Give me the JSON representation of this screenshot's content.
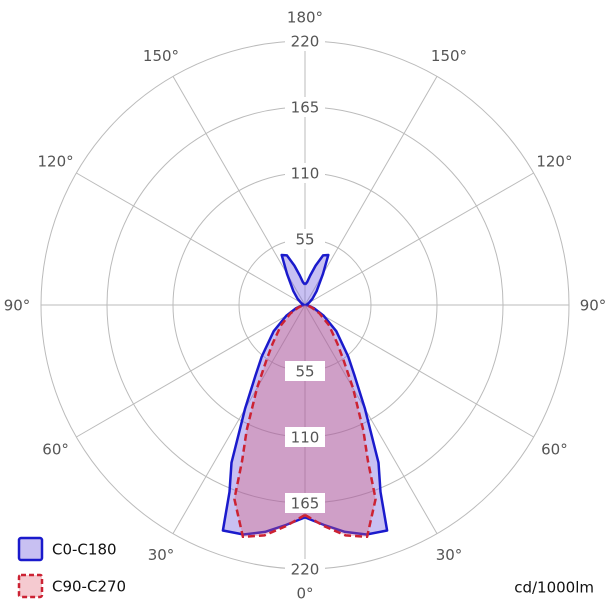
{
  "chart_data": {
    "type": "polar",
    "unit_label": "cd/1000lm",
    "angles": [
      0,
      5,
      10,
      15,
      20,
      22,
      25,
      30,
      35,
      40,
      50,
      60,
      70,
      80,
      90,
      100,
      110,
      120,
      130,
      140,
      150,
      155,
      160,
      165,
      170,
      175,
      180
    ],
    "series": [
      {
        "name": "C0-C180",
        "color": "#1a1acc",
        "fill": "rgba(110,90,220,0.38)",
        "dashed": false,
        "values": [
          177,
          184,
          192,
          198,
          200,
          168,
          145,
          100,
          72,
          56,
          34,
          18,
          8,
          3,
          1,
          1,
          2,
          4,
          8,
          15,
          30,
          46,
          44,
          34,
          25,
          19,
          17
        ]
      },
      {
        "name": "C90-C270",
        "color": "#cc2233",
        "fill": "rgba(225,90,110,0.32)",
        "dashed": true,
        "values": [
          175,
          185,
          195,
          200,
          172,
          140,
          115,
          80,
          56,
          42,
          26,
          14,
          6,
          2,
          0,
          0,
          0,
          0,
          0,
          0,
          0,
          0,
          0,
          0,
          0,
          0,
          0
        ]
      }
    ],
    "rlim": [
      0,
      220
    ],
    "rticks": [
      55,
      110,
      165,
      220
    ],
    "angle_ticks": [
      {
        "value": 0,
        "label": "0°"
      },
      {
        "value": 30,
        "label": "30°"
      },
      {
        "value": 60,
        "label": "60°"
      },
      {
        "value": 90,
        "label": "90°"
      },
      {
        "value": 120,
        "label": "120°"
      },
      {
        "value": 150,
        "label": "150°"
      },
      {
        "value": 180,
        "label": "180°"
      }
    ],
    "grid": true
  }
}
